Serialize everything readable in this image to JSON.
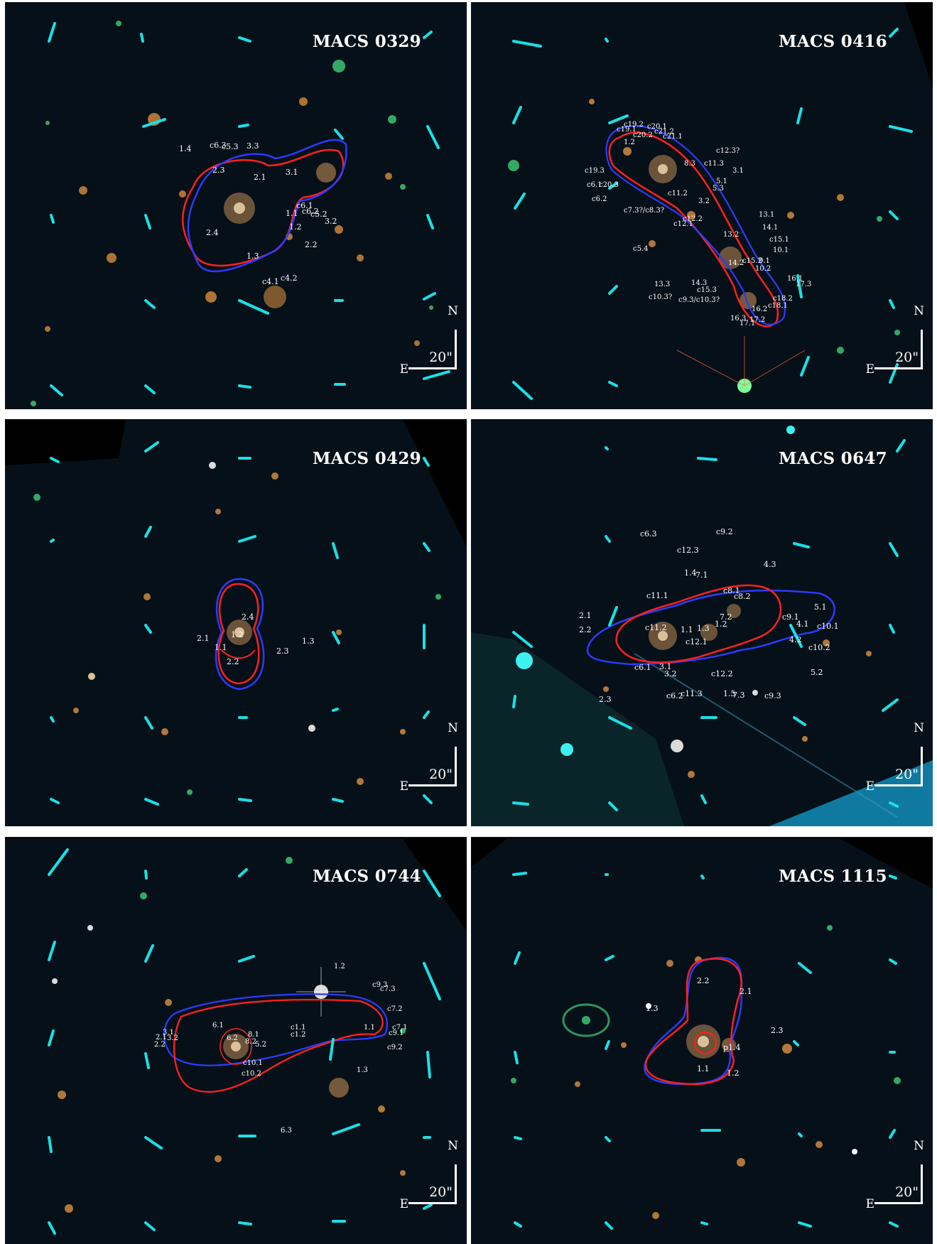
{
  "panels": [
    {
      "id": "0329",
      "title": "MACS 0329",
      "scale": "20\"",
      "north": "N",
      "east": "E",
      "labels": [
        "1.4",
        "c6.3",
        "c5.3",
        "3.3",
        "2.3",
        "2.1",
        "3.1",
        "1.1",
        "c6.1",
        "c6.2",
        "c5.2",
        "3.2",
        "2.4",
        "1.2",
        "2.2",
        "1.3",
        "c4.1",
        "c4.2"
      ]
    },
    {
      "id": "0416",
      "title": "MACS 0416",
      "scale": "20\"",
      "north": "N",
      "east": "E",
      "labels": [
        "c19.2",
        "c19.1",
        "c20.1",
        "c20.2",
        "c21.2",
        "c21.1",
        "1.2",
        "c12.3?",
        "c19.3",
        "8.3",
        "c11.3",
        "3.1",
        "c20.3",
        "c6.1",
        "c6.2",
        "5.1",
        "c11.2",
        "5.3",
        "3.2",
        "c7.3?/c8.3?",
        "c12.2",
        "13.1",
        "14.1",
        "c12.1",
        "13.2",
        "c15.1",
        "10.1",
        "c5.4",
        "14.2",
        "c15.2",
        "9.1",
        "10.2",
        "13.3",
        "14.3",
        "c15.3",
        "16.1",
        "17.3",
        "c10.3?",
        "c9.3/c10.3?",
        "c18.2",
        "c18.1",
        "16.2",
        "16.3",
        "17.1",
        "17.2"
      ]
    },
    {
      "id": "0429",
      "title": "MACS 0429",
      "scale": "20\"",
      "north": "N",
      "east": "E",
      "labels": [
        "2.4",
        "2.1",
        "1.2",
        "1.1",
        "1.3",
        "2.3",
        "2.2"
      ]
    },
    {
      "id": "0647",
      "title": "MACS 0647",
      "scale": "20\"",
      "north": "N",
      "east": "E",
      "labels": [
        "c6.3",
        "c9.2",
        "c12.3",
        "4.3",
        "1.4",
        "7.1",
        "c11.1",
        "c8.1",
        "c8.2",
        "5.1",
        "2.1",
        "7.2",
        "2.2",
        "c11.2",
        "1.1",
        "1.3",
        "1.2",
        "c9.1",
        "4.1",
        "c10.1",
        "c12.1",
        "4.2",
        "c10.2",
        "c6.1",
        "3.1",
        "3.2",
        "c12.2",
        "5.2",
        "2.3",
        "c6.2",
        "c11.3",
        "1.5",
        "7.3",
        "c9.3"
      ]
    },
    {
      "id": "0744",
      "title": "MACS 0744",
      "scale": "20\"",
      "north": "N",
      "east": "E",
      "labels": [
        "1.2",
        "c9.3",
        "c7.3",
        "c7.2",
        "3.1",
        "6.1",
        "2.1",
        "3.2",
        "6.2",
        "8.1",
        "1.1",
        "c1.1",
        "c1.2",
        "c7.1",
        "c9.1",
        "2.2",
        "8.2",
        "5.2",
        "c9.2",
        "c10.1",
        "c10.2",
        "1.3",
        "6.3"
      ]
    },
    {
      "id": "1115",
      "title": "MACS 1115",
      "scale": "20\"",
      "north": "N",
      "east": "E",
      "labels": [
        "2.2",
        "2.1",
        "1.3",
        "2.3",
        "p1.4",
        "1.1",
        "1.2"
      ]
    }
  ]
}
